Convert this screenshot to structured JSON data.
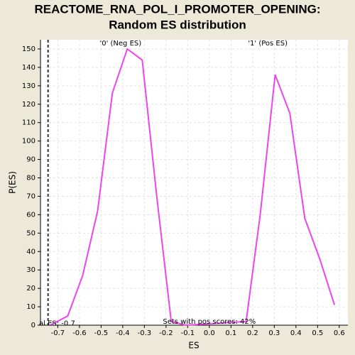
{
  "chart_data": {
    "type": "line",
    "title": [
      "REACTOME_RNA_POL_I_PROMOTER_OPENING:",
      "Random ES distribution"
    ],
    "xlabel": "ES",
    "ylabel": "P(ES)",
    "annotations": [
      {
        "text": "'0' (Neg ES)",
        "x": -0.41,
        "y": 153,
        "color": "#3333cc"
      },
      {
        "text": "'1' (Pos ES)",
        "x": 0.27,
        "y": 153,
        "color": "#cc3333"
      },
      {
        "text": "Sets with pos scores: 42%",
        "x": 0.0,
        "y": 2
      },
      {
        "text": "al ES: -0.7",
        "x": -0.75,
        "y": 1
      }
    ],
    "vline_x": -0.745,
    "x": [
      -0.735,
      -0.654,
      -0.585,
      -0.516,
      -0.448,
      -0.379,
      -0.31,
      -0.242,
      -0.176,
      -0.108,
      0.17,
      0.235,
      0.304,
      0.372,
      0.441,
      0.51,
      0.578
    ],
    "series": [
      {
        "color": "#ee44ee",
        "values": [
          0,
          5,
          27,
          62,
          126,
          150,
          144,
          69,
          2,
          0,
          2,
          60,
          136,
          115,
          58,
          36,
          11
        ]
      }
    ],
    "xlim": [
      -0.78,
      0.64
    ],
    "ylim": [
      0,
      155
    ],
    "xticks": [
      -0.7,
      -0.6,
      -0.5,
      -0.4,
      -0.3,
      -0.2,
      -0.1,
      {
        "value": 0,
        "label": "0.0"
      },
      0.1,
      0.2,
      0.3,
      0.4,
      0.5,
      0.6
    ],
    "yticks": [
      0,
      10,
      20,
      30,
      40,
      50,
      60,
      70,
      80,
      90,
      100,
      110,
      120,
      130,
      140,
      150
    ],
    "grid": true
  }
}
